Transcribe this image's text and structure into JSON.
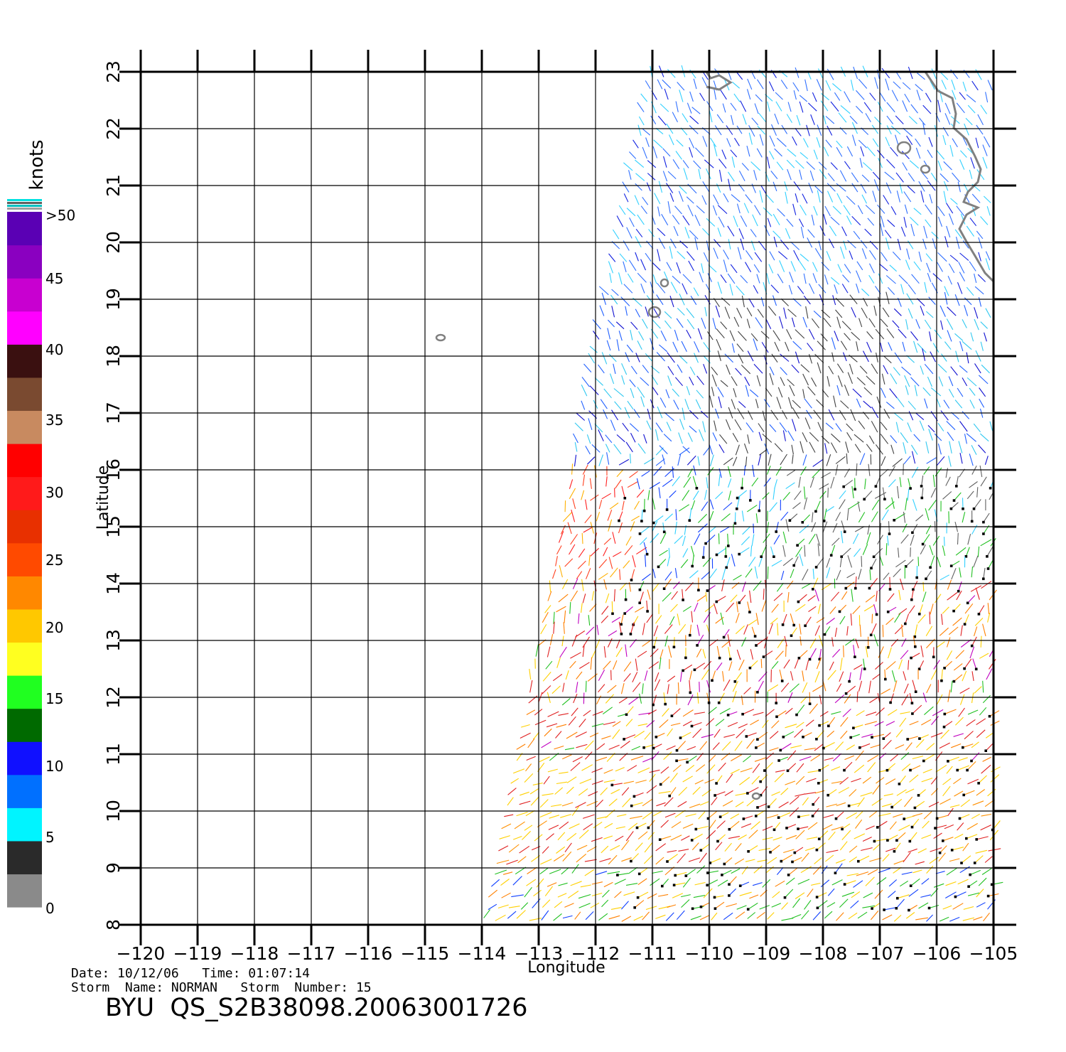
{
  "map": {
    "x_label": "Longitude",
    "y_label": "Latitude",
    "lon_ticks": [
      -120,
      -119,
      -118,
      -117,
      -116,
      -115,
      -114,
      -113,
      -112,
      -111,
      -110,
      -109,
      -108,
      -107,
      -106,
      -105
    ],
    "lat_ticks": [
      8,
      9,
      10,
      11,
      12,
      13,
      14,
      15,
      16,
      17,
      18,
      19,
      20,
      21,
      22,
      23
    ],
    "lon_range": [
      -120,
      -105
    ],
    "lat_range": [
      8,
      23
    ],
    "grid": true,
    "coastline_color": "#808080"
  },
  "colorbar": {
    "unit_label": "knots",
    "tick_labels": [
      "0",
      "5",
      "10",
      "15",
      "20",
      "25",
      "30",
      "35",
      "40",
      "45",
      ">50"
    ],
    "colors": [
      "#8a8a8a",
      "#2a2a2a",
      "#00f4ff",
      "#0070ff",
      "#1010ff",
      "#006a00",
      "#20ff20",
      "#ffff20",
      "#ffc800",
      "#ff8800",
      "#ff4a00",
      "#e83000",
      "#ff1a1a",
      "#ff0000",
      "#c88a60",
      "#7a4a30",
      "#3a1010",
      "#ff00ff",
      "#c800d0",
      "#8a00c0",
      "#5a00b4"
    ]
  },
  "info": {
    "line1": "Date: 10/12/06   Time: 01:07:14",
    "line2": "Storm  Name: NORMAN   Storm  Number: 15",
    "product_id": "BYU  QS_S2B38098.20063001726"
  }
}
